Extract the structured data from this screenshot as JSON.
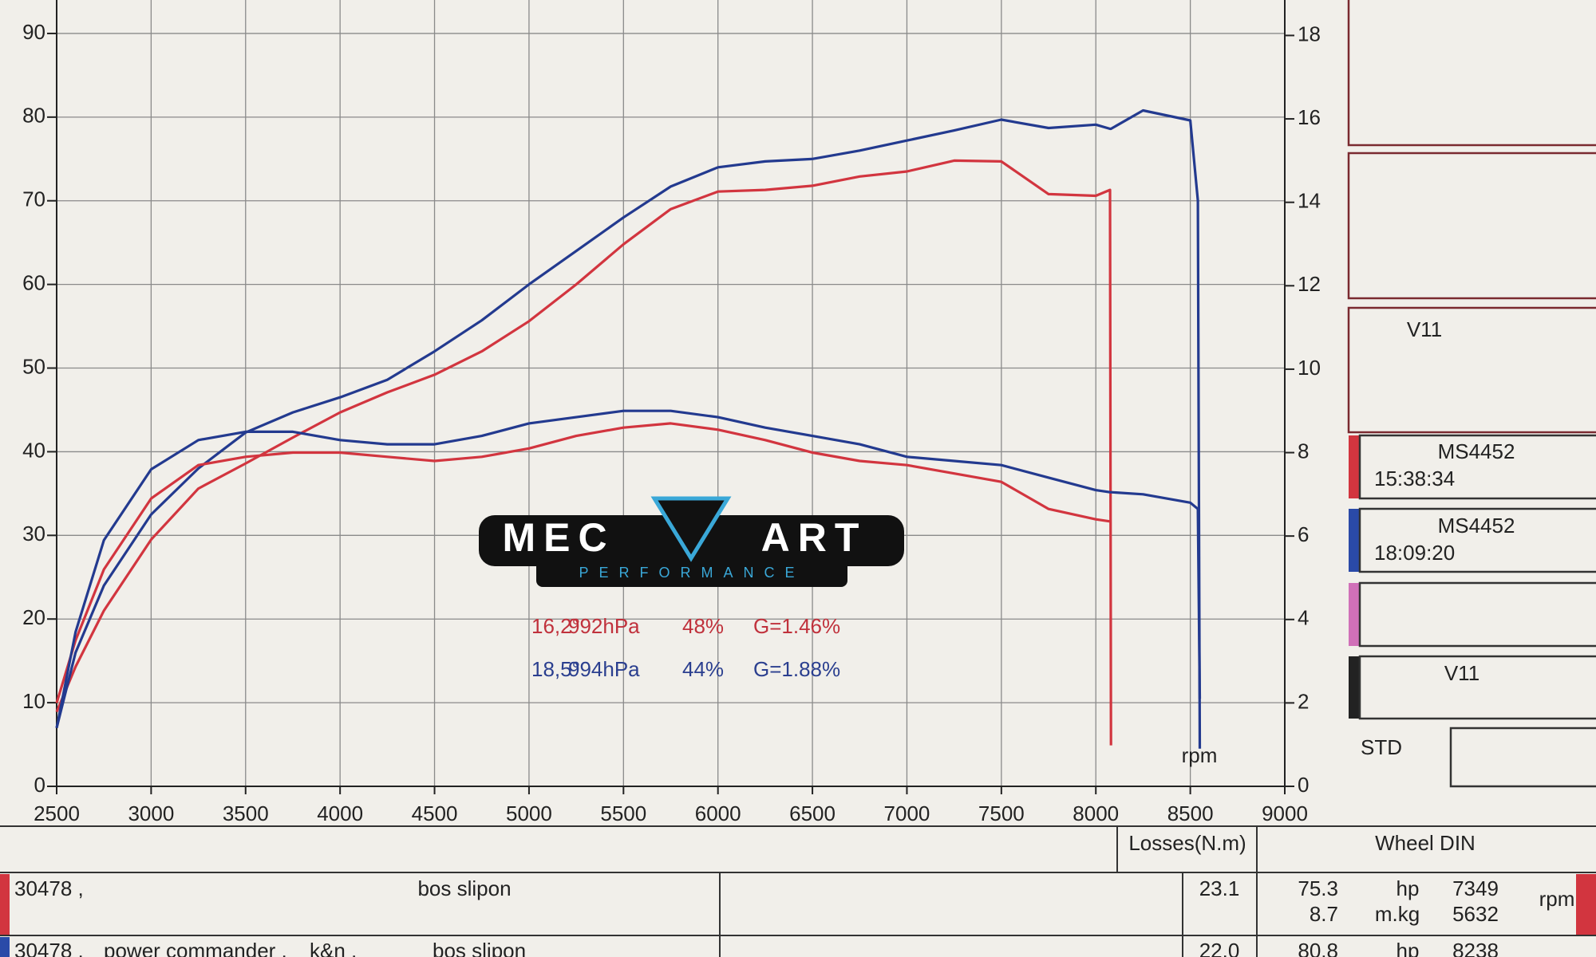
{
  "chart_data": {
    "type": "line",
    "x": [
      2500,
      2600,
      2750,
      3000,
      3250,
      3500,
      3750,
      4000,
      4250,
      4500,
      4750,
      5000,
      5250,
      5500,
      5750,
      6000,
      6250,
      6500,
      6750,
      7000,
      7250,
      7500,
      7750,
      8000,
      8075,
      8080,
      8250,
      8500,
      8540,
      8550
    ],
    "xlim": [
      2500,
      9000
    ],
    "xticks": [
      2500,
      3000,
      3500,
      4000,
      4500,
      5000,
      5500,
      6000,
      6500,
      7000,
      7500,
      8000,
      8500,
      9000
    ],
    "xlabel": "rpm",
    "ylim": [
      0,
      94
    ],
    "yticks": [
      0,
      10,
      20,
      30,
      40,
      50,
      60,
      70,
      80,
      90
    ],
    "y2lim": [
      0,
      18.85
    ],
    "y2ticks": [
      0,
      2,
      4,
      6,
      8,
      10,
      12,
      14,
      16,
      18
    ],
    "grid": true,
    "series": [
      {
        "color": "#d2353f",
        "values": [
          8.9,
          14.3,
          21,
          29.5,
          35.6,
          38.6,
          41.7,
          44.7,
          47.1,
          49.2,
          52,
          55.6,
          60,
          64.8,
          69,
          71.1,
          71.3,
          71.8,
          72.9,
          73.5,
          74.8,
          74.7,
          70.8,
          70.6,
          71.3,
          4.9,
          null,
          null,
          null,
          null
        ]
      },
      {
        "color": "#233a8f",
        "values": [
          7,
          16,
          24,
          32.5,
          38,
          42.3,
          44.7,
          46.5,
          48.6,
          52,
          55.7,
          60,
          64,
          68,
          71.7,
          74,
          74.7,
          75,
          76,
          77.2,
          78.4,
          79.7,
          78.7,
          79.1,
          78.6,
          78.6,
          80.8,
          79.6,
          70,
          4.5
        ]
      },
      {
        "color": "#d2353f",
        "axis": "y2",
        "values": [
          2.0,
          3.5,
          5.2,
          6.9,
          7.7,
          7.9,
          8.0,
          8.0,
          7.9,
          7.8,
          7.9,
          8.1,
          8.4,
          8.6,
          8.7,
          8.55,
          8.3,
          8.0,
          7.8,
          7.7,
          7.5,
          7.3,
          6.65,
          6.4,
          6.35,
          null,
          null,
          null,
          null,
          null
        ]
      },
      {
        "color": "#233a8f",
        "axis": "y2",
        "values": [
          1.4,
          3.7,
          5.9,
          7.6,
          8.3,
          8.5,
          8.5,
          8.3,
          8.2,
          8.2,
          8.4,
          8.7,
          8.85,
          9.0,
          9.0,
          8.85,
          8.6,
          8.4,
          8.2,
          7.9,
          7.8,
          7.7,
          7.4,
          7.1,
          7.05,
          7.05,
          7.0,
          6.8,
          6.65,
          2.1
        ]
      }
    ],
    "annotations": [
      {
        "color": "#c0313c",
        "parts": [
          "16,2°",
          "992hPa",
          "48%",
          "G=1.46%"
        ]
      },
      {
        "color": "#2b3f8f",
        "parts": [
          "18,5°",
          "994hPa",
          "44%",
          "G=1.88%"
        ]
      }
    ]
  },
  "logo": {
    "left": "MEC",
    "right": "ART",
    "tagline": "PERFORMANCE"
  },
  "side_panel": {
    "box3": "V11",
    "run1_id": "MS4452",
    "run1_time": "15:38:34",
    "run2_id": "MS4452",
    "run2_time": "18:09:20",
    "box7": "V11",
    "std": "STD"
  },
  "table": {
    "header_losses": "Losses(N.m)",
    "header_wheel": "Wheel DIN",
    "rows": [
      {
        "id": "30478 ,",
        "mods": [
          "bos slipon"
        ],
        "losses": "23.1",
        "power": "75.3",
        "power_unit": "hp",
        "power_rpm": "7349",
        "torque": "8.7",
        "torque_unit": "m.kg",
        "torque_rpm": "5632",
        "rpm_unit": "rpm"
      },
      {
        "id": "30478 ,",
        "mods": [
          "power commander ,",
          "k&n ,",
          "bos slipon"
        ],
        "losses": "22.0",
        "power": "80.8",
        "power_unit": "hp",
        "power_rpm": "8238"
      }
    ]
  }
}
